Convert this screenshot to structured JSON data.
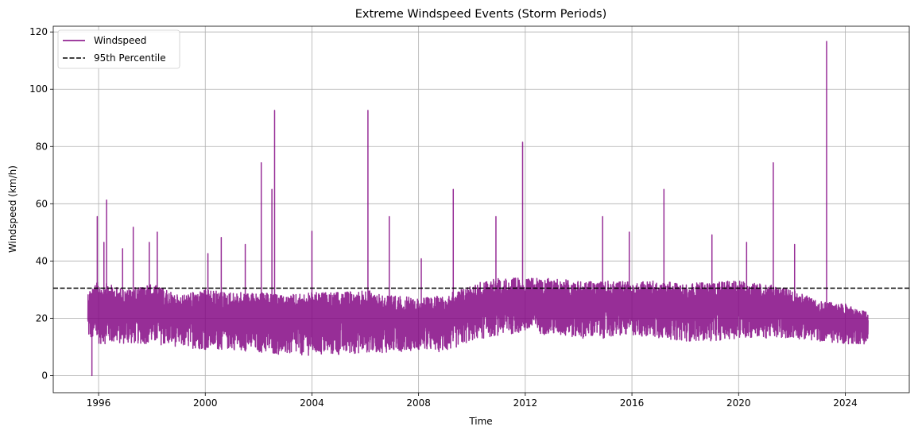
{
  "chart_data": {
    "type": "line",
    "title": "Extreme Windspeed Events (Storm Periods)",
    "xlabel": "Time",
    "ylabel": "Windspeed (km/h)",
    "xlim": [
      1994.3,
      2026.4
    ],
    "ylim": [
      -6,
      122
    ],
    "x_ticks": [
      1996,
      2000,
      2004,
      2008,
      2012,
      2016,
      2020,
      2024
    ],
    "y_ticks": [
      0,
      20,
      40,
      60,
      80,
      100,
      120
    ],
    "grid": true,
    "legend": {
      "placement": "top-left",
      "entries": [
        {
          "label": "Windspeed",
          "style": "solid",
          "color": "#800080"
        },
        {
          "label": "95th Percentile",
          "style": "dashed",
          "color": "#000000"
        }
      ]
    },
    "colors": {
      "series": "#800080",
      "threshold": "#000000",
      "grid": "#b0b0b0"
    },
    "series": [
      {
        "name": "Windspeed",
        "x_start": 1995.6,
        "x_end": 2024.85,
        "envelope": {
          "x": [
            1995.6,
            1996.0,
            1997.0,
            1998.0,
            1999.0,
            2000.0,
            2001.0,
            2002.0,
            2003.0,
            2004.0,
            2005.0,
            2006.0,
            2007.0,
            2008.0,
            2009.0,
            2010.0,
            2011.0,
            2012.0,
            2013.0,
            2014.0,
            2015.0,
            2016.0,
            2017.0,
            2018.0,
            2019.0,
            2020.0,
            2021.0,
            2022.0,
            2023.0,
            2024.0,
            2024.85
          ],
          "low": [
            13,
            11,
            11,
            11,
            10,
            9,
            9,
            8,
            7,
            7,
            7,
            8,
            8,
            9,
            8,
            12,
            14,
            15,
            14,
            13,
            13,
            14,
            13,
            12,
            12,
            13,
            13,
            13,
            12,
            11,
            11
          ],
          "high": [
            30,
            33,
            30,
            32,
            28,
            30,
            29,
            29,
            28,
            29,
            29,
            30,
            28,
            27,
            28,
            32,
            34,
            34,
            34,
            33,
            33,
            33,
            33,
            32,
            33,
            33,
            32,
            30,
            26,
            25,
            22
          ]
        },
        "peaks": [
          {
            "x": 1995.75,
            "y": 0
          },
          {
            "x": 1995.95,
            "y": 55.5
          },
          {
            "x": 1996.3,
            "y": 61.3
          },
          {
            "x": 1996.2,
            "y": 46.5
          },
          {
            "x": 1996.9,
            "y": 44.3
          },
          {
            "x": 1997.3,
            "y": 51.8
          },
          {
            "x": 1997.9,
            "y": 46.5
          },
          {
            "x": 1998.2,
            "y": 50.1
          },
          {
            "x": 2000.1,
            "y": 42.6
          },
          {
            "x": 2000.6,
            "y": 48.2
          },
          {
            "x": 2001.5,
            "y": 45.8
          },
          {
            "x": 2002.1,
            "y": 74.3
          },
          {
            "x": 2002.5,
            "y": 65.0
          },
          {
            "x": 2002.6,
            "y": 92.6
          },
          {
            "x": 2004.0,
            "y": 50.4
          },
          {
            "x": 2006.1,
            "y": 92.6
          },
          {
            "x": 2006.9,
            "y": 55.5
          },
          {
            "x": 2008.1,
            "y": 40.8
          },
          {
            "x": 2009.3,
            "y": 65.0
          },
          {
            "x": 2010.9,
            "y": 55.5
          },
          {
            "x": 2011.9,
            "y": 81.5
          },
          {
            "x": 2014.9,
            "y": 55.5
          },
          {
            "x": 2015.9,
            "y": 50.1
          },
          {
            "x": 2017.2,
            "y": 65.0
          },
          {
            "x": 2019.0,
            "y": 49.1
          },
          {
            "x": 2020.3,
            "y": 46.5
          },
          {
            "x": 2021.3,
            "y": 74.3
          },
          {
            "x": 2022.1,
            "y": 45.8
          },
          {
            "x": 2023.3,
            "y": 116.7
          }
        ]
      },
      {
        "name": "95th Percentile",
        "y": 30.5
      }
    ]
  }
}
